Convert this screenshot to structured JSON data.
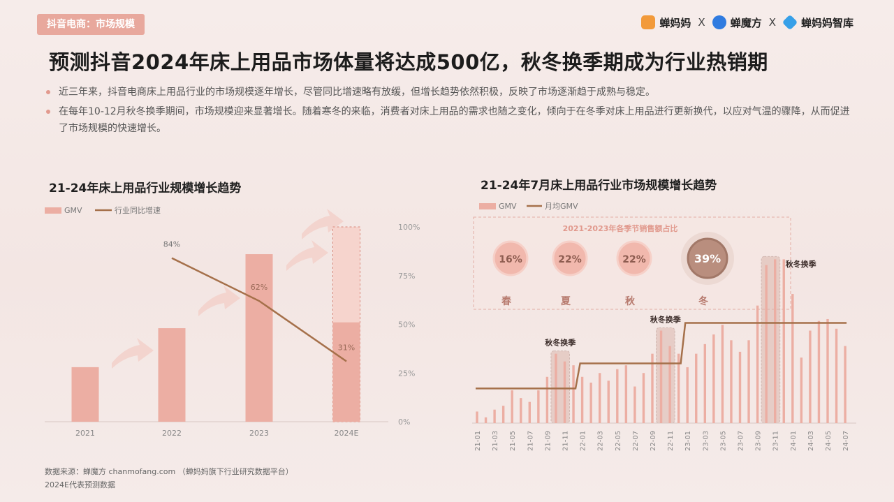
{
  "header": {
    "tag": "抖音电商：市场规模",
    "brands": [
      "蝉妈妈",
      "X",
      "蝉魔方",
      "X",
      "蝉妈妈智库"
    ],
    "title": "预测抖音2024年床上用品市场体量将达成500亿，秋冬换季期成为行业热销期"
  },
  "bullets": [
    "近三年来，抖音电商床上用品行业的市场规模逐年增长，尽管同比增速略有放缓，但增长趋势依然积极，反映了市场逐渐趋于成熟与稳定。",
    "在每年10-12月秋冬换季期间，市场规模迎来显著增长。随着寒冬的来临，消费者对床上用品的需求也随之变化，倾向于在冬季对床上用品进行更新换代，以应对气温的骤降，从而促进了市场规模的快速增长。"
  ],
  "colors": {
    "bar": "#ecaea3",
    "bar_light": "#f6d4cd",
    "line": "#a5704a",
    "accent": "#d9877a"
  },
  "chart_data": [
    {
      "type": "bar",
      "title": "21-24年床上用品行业规模增长趋势",
      "legend": [
        "GMV",
        "行业同比增速"
      ],
      "categories": [
        "2021",
        "2022",
        "2023",
        "2024E"
      ],
      "values": [
        28,
        48,
        86,
        100
      ],
      "forecast_split": 51,
      "series": [
        {
          "name": "行业同比增速",
          "type": "line",
          "values": [
            null,
            84,
            62,
            31
          ]
        }
      ],
      "y2_ticks": [
        "0%",
        "25%",
        "50%",
        "75%",
        "100%"
      ],
      "ylim": [
        0,
        100
      ]
    },
    {
      "type": "bar",
      "title": "21-24年7月床上用品行业市场规模增长趋势",
      "legend": [
        "GMV",
        "月均GMV"
      ],
      "categories": [
        "21-01",
        "21-02",
        "21-03",
        "21-04",
        "21-05",
        "21-06",
        "21-07",
        "21-08",
        "21-09",
        "21-10",
        "21-11",
        "21-12",
        "22-01",
        "22-02",
        "22-03",
        "22-04",
        "22-05",
        "22-06",
        "22-07",
        "22-08",
        "22-09",
        "22-10",
        "22-11",
        "22-12",
        "23-01",
        "23-02",
        "23-03",
        "23-04",
        "23-05",
        "23-06",
        "23-07",
        "23-08",
        "23-09",
        "23-10",
        "23-11",
        "23-12",
        "24-01",
        "24-02",
        "24-03",
        "24-04",
        "24-05",
        "24-06",
        "24-07"
      ],
      "values": [
        6,
        3,
        7,
        9,
        17,
        13,
        11,
        17,
        24,
        36,
        32,
        30,
        24,
        21,
        26,
        22,
        28,
        30,
        19,
        26,
        36,
        48,
        40,
        36,
        29,
        36,
        41,
        46,
        51,
        43,
        37,
        43,
        61,
        82,
        85,
        85,
        67,
        34,
        48,
        53,
        54,
        49,
        40
      ],
      "series": [
        {
          "name": "月均GMV",
          "type": "line",
          "values": [
            18,
            18,
            18,
            18,
            18,
            18,
            18,
            18,
            18,
            18,
            18,
            18,
            31,
            31,
            31,
            31,
            31,
            31,
            31,
            31,
            31,
            31,
            31,
            31,
            52,
            52,
            52,
            52,
            52,
            52,
            52,
            52,
            52,
            52,
            52,
            52,
            52,
            52,
            52,
            52,
            52,
            52,
            52
          ]
        }
      ],
      "ylim": [
        0,
        100
      ],
      "highlights": [
        {
          "label": "秋冬换季",
          "from": 9,
          "to": 10
        },
        {
          "label": "秋冬换季",
          "from": 21,
          "to": 22
        },
        {
          "label": "秋冬换季",
          "from": 33,
          "to": 34
        }
      ],
      "inset": {
        "title": "2021-2023年各季节销售额占比",
        "seasons": [
          {
            "name": "春",
            "pct": "16%"
          },
          {
            "name": "夏",
            "pct": "22%"
          },
          {
            "name": "秋",
            "pct": "22%"
          },
          {
            "name": "冬",
            "pct": "39%"
          }
        ]
      }
    }
  ],
  "footer": {
    "source": "数据来源：蝉魔方 chanmofang.com （蝉妈妈旗下行业研究数据平台）",
    "note": "2024E代表预测数据"
  }
}
